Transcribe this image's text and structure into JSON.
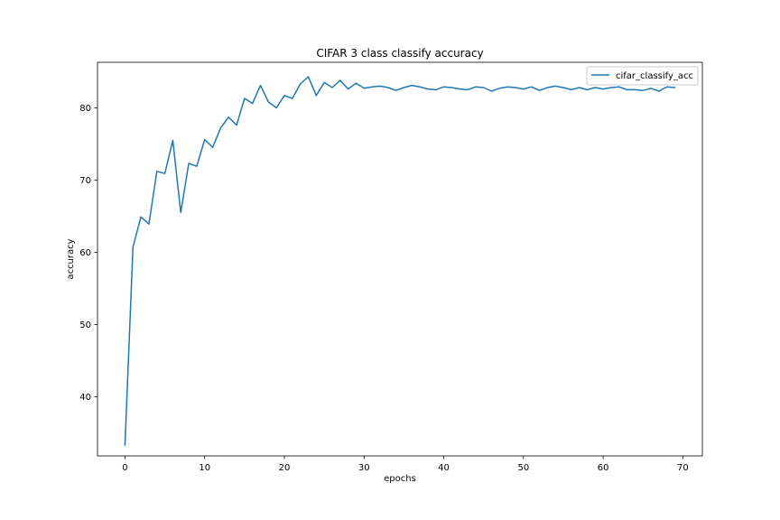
{
  "chart_data": {
    "type": "line",
    "title": "CIFAR 3 class classify accuracy",
    "xlabel": "epochs",
    "ylabel": "accuracy",
    "xlim": [
      -3.45,
      72.45
    ],
    "ylim": [
      31.8,
      86.3
    ],
    "xticks": [
      0,
      10,
      20,
      30,
      40,
      50,
      60,
      70
    ],
    "yticks": [
      40,
      50,
      60,
      70,
      80
    ],
    "grid": false,
    "legend_position": "upper right",
    "series": [
      {
        "name": "cifar_classify_acc",
        "color": "#1f77b4",
        "x": [
          0,
          1,
          2,
          3,
          4,
          5,
          6,
          7,
          8,
          9,
          10,
          11,
          12,
          13,
          14,
          15,
          16,
          17,
          18,
          19,
          20,
          21,
          22,
          23,
          24,
          25,
          26,
          27,
          28,
          29,
          30,
          31,
          32,
          33,
          34,
          35,
          36,
          37,
          38,
          39,
          40,
          41,
          42,
          43,
          44,
          45,
          46,
          47,
          48,
          49,
          50,
          51,
          52,
          53,
          54,
          55,
          56,
          57,
          58,
          59,
          60,
          61,
          62,
          63,
          64,
          65,
          66,
          67,
          68,
          69
        ],
        "values": [
          33.3,
          60.7,
          64.9,
          63.9,
          71.2,
          70.9,
          75.5,
          65.5,
          72.3,
          71.9,
          75.6,
          74.5,
          77.2,
          78.7,
          77.6,
          81.3,
          80.6,
          83.1,
          80.8,
          80.0,
          81.7,
          81.3,
          83.3,
          84.3,
          81.7,
          83.5,
          82.8,
          83.8,
          82.6,
          83.4,
          82.7,
          82.9,
          83.0,
          82.8,
          82.4,
          82.8,
          83.1,
          82.9,
          82.6,
          82.5,
          82.9,
          82.8,
          82.6,
          82.5,
          82.9,
          82.8,
          82.3,
          82.7,
          82.9,
          82.8,
          82.6,
          82.9,
          82.4,
          82.8,
          83.0,
          82.8,
          82.5,
          82.8,
          82.5,
          82.8,
          82.6,
          82.8,
          82.9,
          82.5,
          82.5,
          82.4,
          82.7,
          82.3,
          82.9,
          82.8
        ]
      }
    ]
  }
}
